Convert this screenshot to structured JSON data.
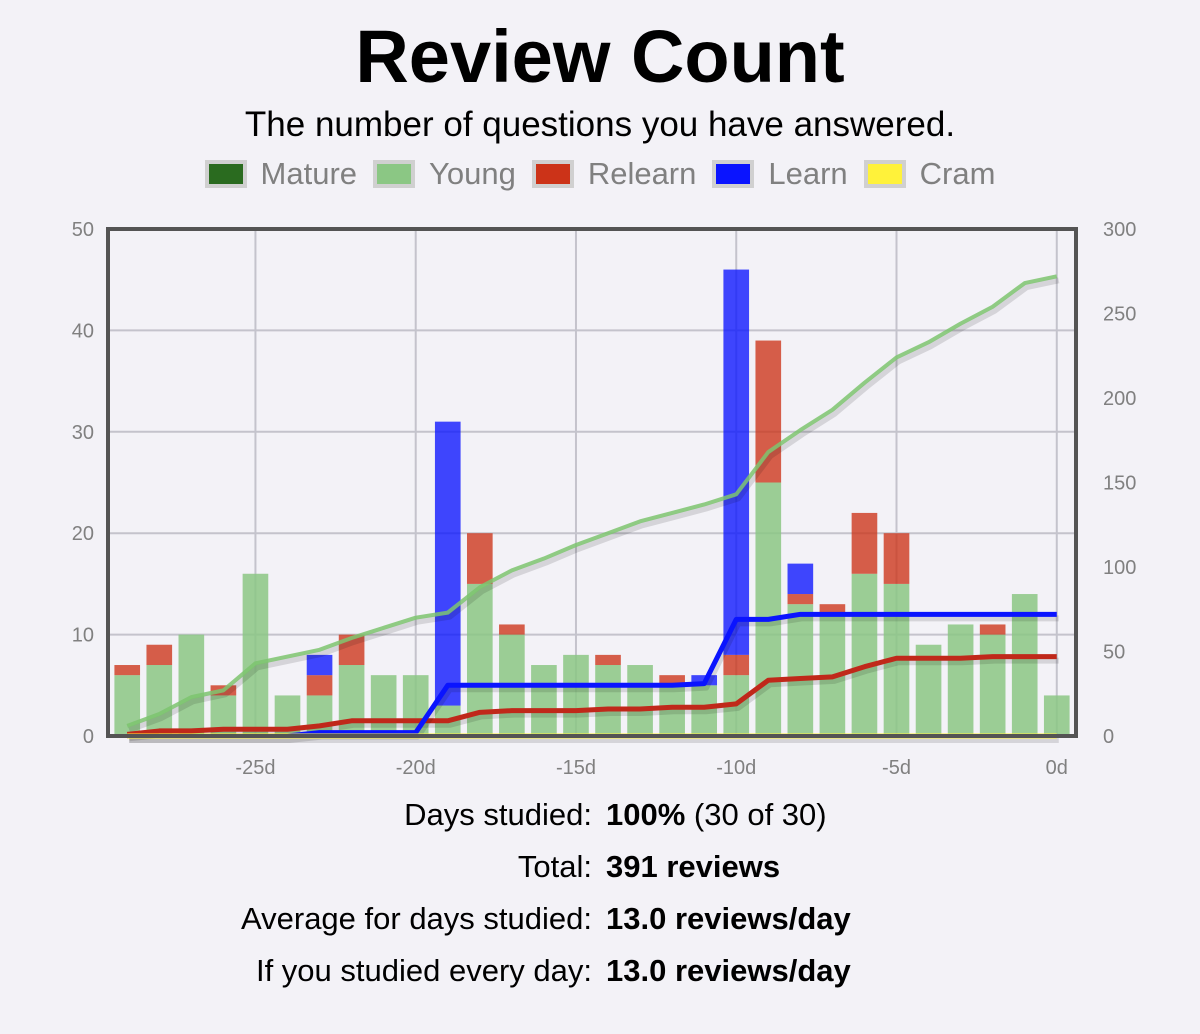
{
  "header": {
    "title": "Review Count",
    "subtitle": "The number of questions you have answered."
  },
  "legend": [
    {
      "label": "Mature",
      "color": "#2a6b1f"
    },
    {
      "label": "Young",
      "color": "#8bc784"
    },
    {
      "label": "Relearn",
      "color": "#cc3318"
    },
    {
      "label": "Learn",
      "color": "#0a14ff"
    },
    {
      "label": "Cram",
      "color": "#fff23a"
    }
  ],
  "stats": {
    "days_studied_label": "Days studied:",
    "days_studied_value": "100%",
    "days_studied_detail": "(30 of 30)",
    "total_label": "Total:",
    "total_value": "391 reviews",
    "average_label": "Average for days studied:",
    "average_value": "13.0 reviews/day",
    "every_day_label": "If you studied every day:",
    "every_day_value": "13.0 reviews/day"
  },
  "chart_data": {
    "type": "bar",
    "stacked": true,
    "x": [
      -29,
      -28,
      -27,
      -26,
      -25,
      -24,
      -23,
      -22,
      -21,
      -20,
      -19,
      -18,
      -17,
      -16,
      -15,
      -14,
      -13,
      -12,
      -11,
      -10,
      -9,
      -8,
      -7,
      -6,
      -5,
      -4,
      -3,
      -2,
      -1,
      0
    ],
    "xlim": [
      -29.6,
      0.6
    ],
    "x_ticks": [
      -25,
      -20,
      -15,
      -10,
      -5,
      0
    ],
    "x_tick_labels": [
      "-25d",
      "-20d",
      "-15d",
      "-10d",
      "-5d",
      "0d"
    ],
    "ylim": [
      0,
      50
    ],
    "y_ticks": [
      0,
      10,
      20,
      30,
      40,
      50
    ],
    "y2lim": [
      0,
      300
    ],
    "y2_ticks": [
      0,
      50,
      100,
      150,
      200,
      250,
      300
    ],
    "grid": true,
    "legend_position": "top",
    "series": [
      {
        "name": "Mature",
        "color": "#2a6b1f",
        "values": [
          0,
          0,
          0,
          0,
          0,
          0,
          0,
          0,
          0,
          0,
          0,
          0,
          0,
          0,
          0,
          0,
          0,
          0,
          0,
          0,
          0,
          0,
          0,
          0,
          0,
          0,
          0,
          0,
          0,
          0
        ]
      },
      {
        "name": "Young",
        "color": "#8bc784",
        "values": [
          6,
          7,
          10,
          4,
          16,
          4,
          4,
          7,
          6,
          6,
          3,
          15,
          10,
          7,
          8,
          7,
          7,
          5,
          5,
          6,
          25,
          13,
          12,
          16,
          15,
          9,
          11,
          10,
          14,
          4
        ]
      },
      {
        "name": "Relearn",
        "color": "#cc3318",
        "values": [
          1,
          2,
          0,
          1,
          0,
          0,
          2,
          3,
          0,
          0,
          0,
          5,
          1,
          0,
          0,
          1,
          0,
          1,
          0,
          2,
          14,
          1,
          1,
          6,
          5,
          0,
          0,
          1,
          0,
          0
        ]
      },
      {
        "name": "Learn",
        "color": "#0a14ff",
        "values": [
          0,
          0,
          0,
          0,
          0,
          0,
          2,
          0,
          0,
          0,
          28,
          0,
          0,
          0,
          0,
          0,
          0,
          0,
          1,
          38,
          0,
          3,
          0,
          0,
          0,
          0,
          0,
          0,
          0,
          0
        ]
      },
      {
        "name": "Cram",
        "color": "#fff23a",
        "values": [
          0,
          0,
          0,
          0,
          0,
          0,
          0,
          0,
          0,
          0,
          0,
          0,
          0,
          0,
          0,
          0,
          0,
          0,
          0,
          0,
          0,
          0,
          0,
          0,
          0,
          0,
          0,
          0,
          0,
          0
        ]
      }
    ],
    "cumulative_lines": [
      {
        "name": "Young",
        "color": "#7cc46f",
        "values": [
          6,
          13,
          23,
          27,
          43,
          47,
          51,
          58,
          64,
          70,
          73,
          88,
          98,
          105,
          113,
          120,
          127,
          132,
          137,
          143,
          168,
          181,
          193,
          209,
          224,
          233,
          244,
          254,
          268,
          272
        ]
      },
      {
        "name": "Relearn",
        "color": "#c0281a",
        "values": [
          1,
          3,
          3,
          4,
          4,
          4,
          6,
          9,
          9,
          9,
          9,
          14,
          15,
          15,
          15,
          16,
          16,
          17,
          17,
          19,
          33,
          34,
          35,
          41,
          46,
          46,
          46,
          47,
          47,
          47
        ]
      },
      {
        "name": "Learn",
        "color": "#0a14ff",
        "values": [
          0,
          0,
          0,
          0,
          0,
          0,
          2,
          2,
          2,
          2,
          30,
          30,
          30,
          30,
          30,
          30,
          30,
          30,
          31,
          69,
          69,
          72,
          72,
          72,
          72,
          72,
          72,
          72,
          72,
          72
        ]
      },
      {
        "name": "Cram",
        "color": "#fff23a",
        "values": [
          0,
          0,
          0,
          0,
          0,
          0,
          0,
          0,
          0,
          0,
          0,
          0,
          0,
          0,
          0,
          0,
          0,
          0,
          0,
          0,
          0,
          0,
          0,
          0,
          0,
          0,
          0,
          0,
          0,
          0
        ]
      }
    ]
  }
}
